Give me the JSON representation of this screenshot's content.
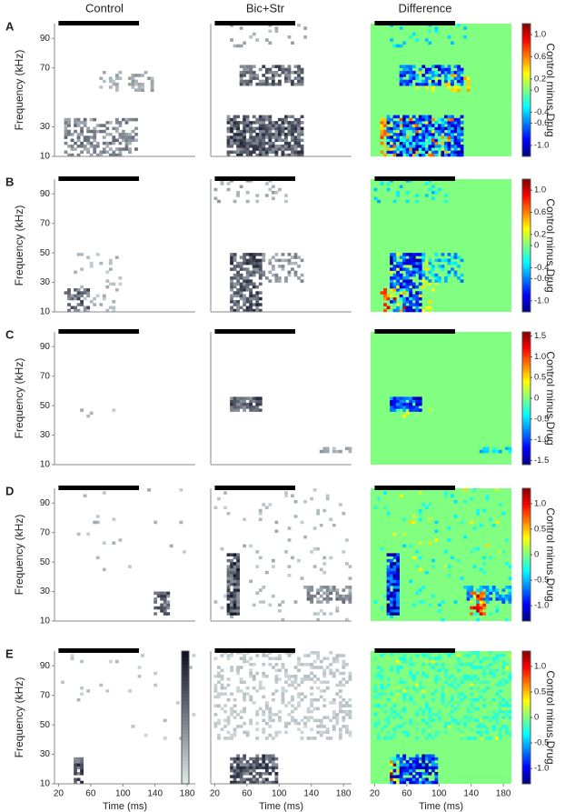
{
  "column_titles": [
    "Control",
    "Bic+Str",
    "Difference"
  ],
  "y_label": "Frequency (kHz)",
  "x_label": "Time (ms)",
  "colorbar_label": "Control minus Drug",
  "xlim": [
    15,
    190
  ],
  "xticks": [
    20,
    60,
    100,
    140,
    180
  ],
  "ylim": [
    10,
    100
  ],
  "rows": [
    {
      "label": "A",
      "yticks": [
        10,
        30,
        70,
        90
      ],
      "clim": [
        -1.2,
        1.2
      ],
      "cticks": [
        {
          "value": 1,
          "label": "1.0"
        },
        0.6,
        0.2,
        0,
        -0.4,
        -0.6,
        {
          "value": -1,
          "label": "-1.0"
        }
      ]
    },
    {
      "label": "B",
      "yticks": [
        10,
        30,
        50,
        70,
        90
      ],
      "clim": [
        -1.2,
        1.2
      ],
      "cticks": [
        {
          "value": 1,
          "label": "1.0"
        },
        0.6,
        0.2,
        0,
        -0.4,
        -0.6,
        {
          "value": -1,
          "label": "-1.0"
        }
      ]
    },
    {
      "label": "C",
      "yticks": [
        10,
        30,
        50,
        70,
        90
      ],
      "clim": [
        -1.6,
        1.6
      ],
      "cticks": [
        1.5,
        {
          "value": 1,
          "label": "1.0"
        },
        0.5,
        0,
        -0.5,
        {
          "value": -1,
          "label": "-1.0"
        },
        -1.5
      ]
    },
    {
      "label": "D",
      "yticks": [
        10,
        30,
        50,
        70,
        90
      ],
      "clim": [
        -1.3,
        1.3
      ],
      "cticks": [
        {
          "value": 1,
          "label": "1.0"
        },
        0.5,
        0,
        -0.5,
        {
          "value": -1,
          "label": "-1.0"
        }
      ]
    },
    {
      "label": "E",
      "yticks": [
        10,
        30,
        50,
        70,
        90
      ],
      "clim": [
        -1.3,
        1.3
      ],
      "cticks": [
        {
          "value": 1,
          "label": "1.0"
        },
        0.5,
        0,
        -0.5,
        {
          "value": -1,
          "label": "-1.0"
        }
      ]
    }
  ]
}
